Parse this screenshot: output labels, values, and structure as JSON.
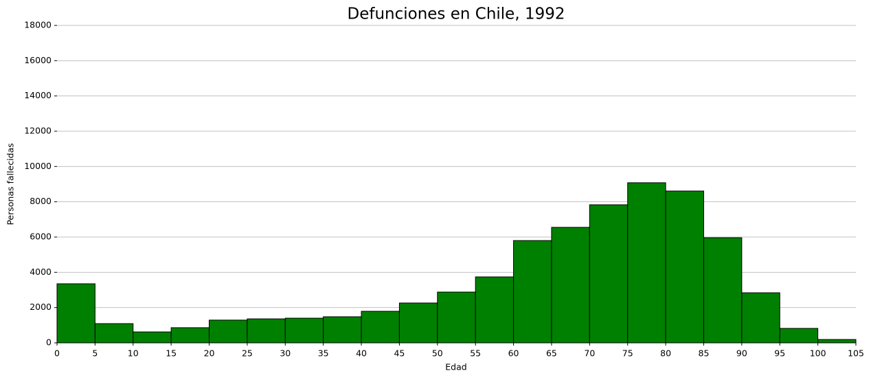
{
  "chart_data": {
    "type": "histogram",
    "title": "Defunciones en Chile, 1992",
    "xlabel": "Edad",
    "ylabel": "Personas fallecidas",
    "bins": [
      0,
      5,
      10,
      15,
      20,
      25,
      30,
      35,
      40,
      45,
      50,
      55,
      60,
      65,
      70,
      75,
      80,
      85,
      90,
      95,
      100,
      105
    ],
    "values": [
      3350,
      1090,
      620,
      860,
      1290,
      1360,
      1400,
      1480,
      1790,
      2260,
      2880,
      3740,
      5800,
      6550,
      7830,
      9080,
      8610,
      5960,
      2840,
      820,
      190
    ],
    "color": "#008000",
    "edgecolor": "#000000",
    "xlim": [
      0,
      105
    ],
    "xticks": [
      0,
      5,
      10,
      15,
      20,
      25,
      30,
      35,
      40,
      45,
      50,
      55,
      60,
      65,
      70,
      75,
      80,
      85,
      90,
      95,
      100,
      105
    ],
    "ylim": [
      0,
      18000
    ],
    "yticks": [
      0,
      2000,
      4000,
      6000,
      8000,
      10000,
      12000,
      14000,
      16000,
      18000
    ],
    "grid": true
  }
}
